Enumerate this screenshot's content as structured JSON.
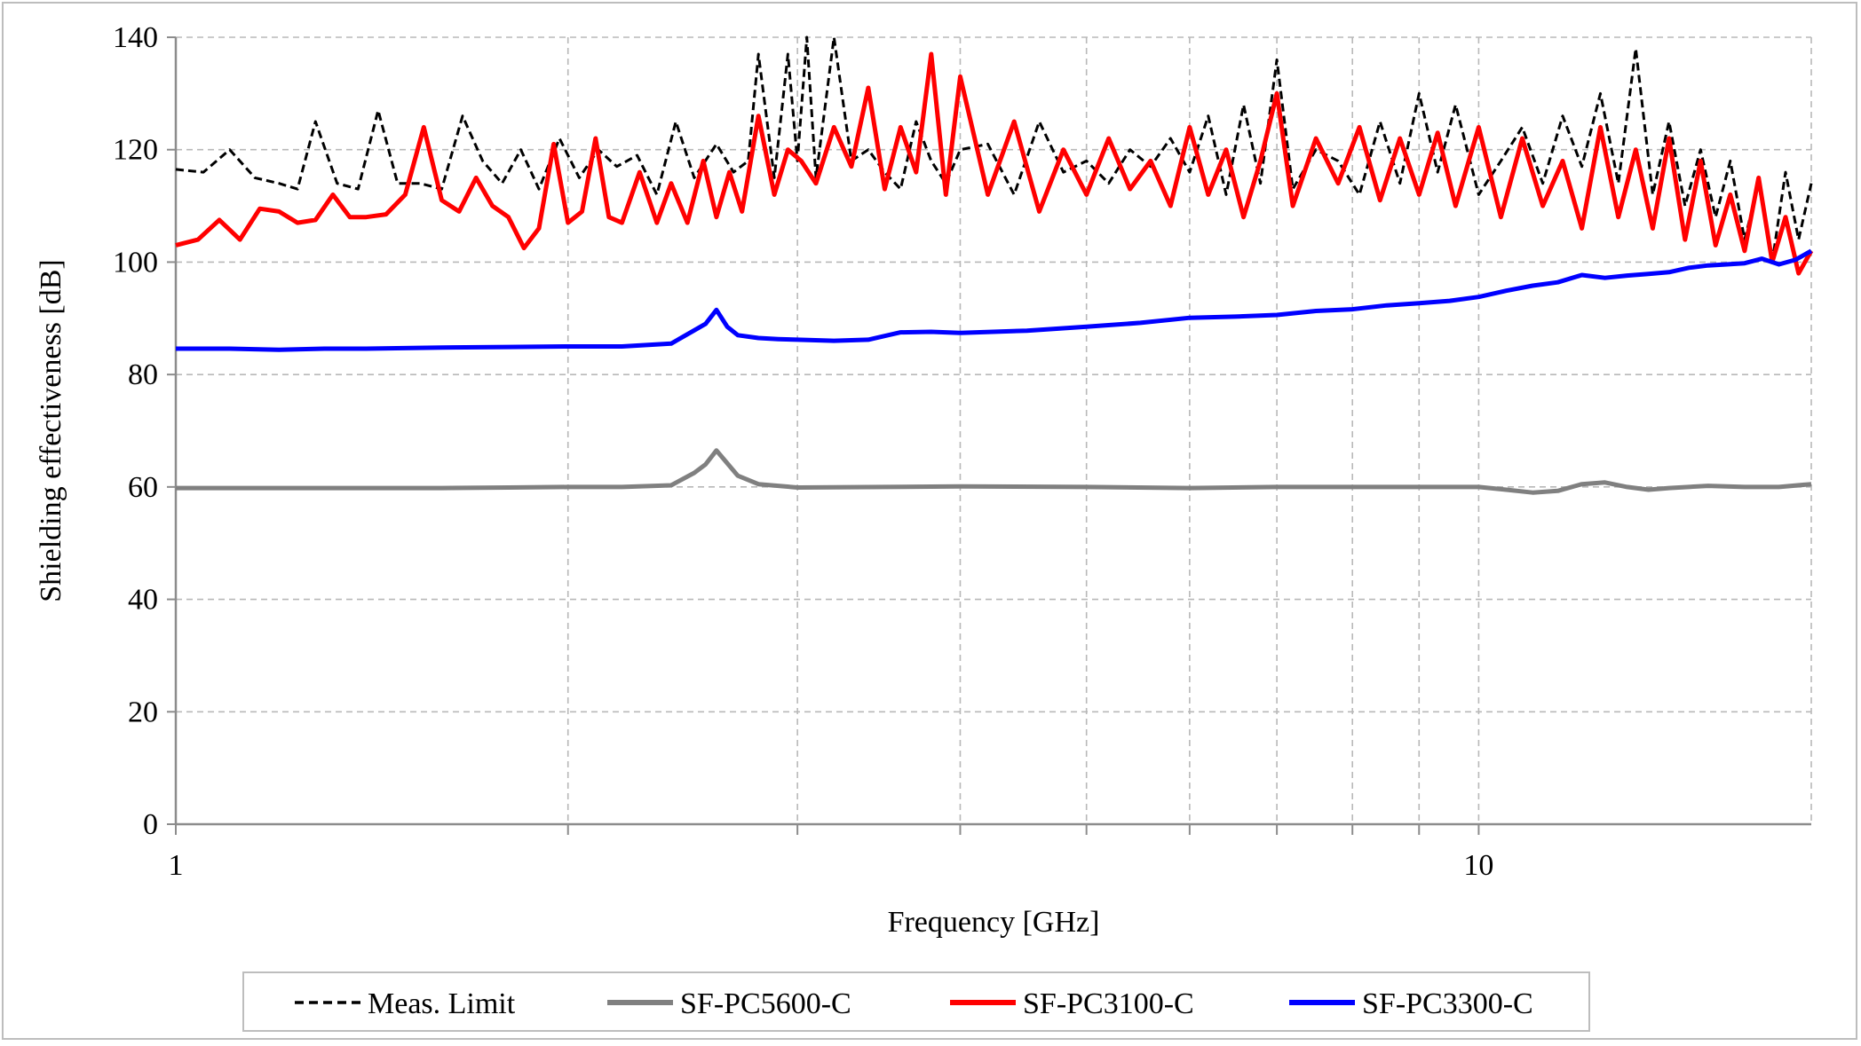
{
  "chart_data": {
    "type": "line",
    "title": "",
    "xlabel": "Frequency [GHz]",
    "ylabel": "Shielding effectiveness [dB]",
    "x_scale": "log",
    "xlim": [
      1,
      18
    ],
    "ylim": [
      0,
      140
    ],
    "y_ticks": [
      0,
      20,
      40,
      60,
      80,
      100,
      120,
      140
    ],
    "x_tick_labels": [
      {
        "value": 1,
        "label": "1"
      },
      {
        "value": 10,
        "label": "10"
      }
    ],
    "x_gridlines": [
      1,
      2,
      3,
      4,
      5,
      6,
      7,
      8,
      9,
      10
    ],
    "grid": true,
    "legend_position": "bottom",
    "series": [
      {
        "name": "Meas. Limit",
        "color": "#000000",
        "style": "dashed",
        "x": [
          1.0,
          1.05,
          1.1,
          1.15,
          1.2,
          1.24,
          1.28,
          1.33,
          1.38,
          1.43,
          1.48,
          1.54,
          1.6,
          1.66,
          1.72,
          1.78,
          1.84,
          1.9,
          1.97,
          2.04,
          2.11,
          2.18,
          2.26,
          2.34,
          2.42,
          2.5,
          2.6,
          2.68,
          2.75,
          2.8,
          2.88,
          2.95,
          3.0,
          3.05,
          3.1,
          3.2,
          3.3,
          3.4,
          3.5,
          3.6,
          3.7,
          3.8,
          3.9,
          4.0,
          4.2,
          4.4,
          4.6,
          4.8,
          5.0,
          5.2,
          5.4,
          5.6,
          5.8,
          6.0,
          6.2,
          6.4,
          6.6,
          6.8,
          7.0,
          7.2,
          7.5,
          7.8,
          8.1,
          8.4,
          8.7,
          9.0,
          9.3,
          9.6,
          10.0,
          10.4,
          10.8,
          11.2,
          11.6,
          12.0,
          12.4,
          12.8,
          13.2,
          13.6,
          14.0,
          14.4,
          14.8,
          15.2,
          15.6,
          16.0,
          16.4,
          16.8,
          17.2,
          17.6,
          18.0
        ],
        "y": [
          116.5,
          116,
          120,
          115,
          114,
          113,
          125,
          114,
          113,
          127,
          114,
          114,
          113,
          126,
          118,
          114,
          120,
          113,
          122,
          115,
          120,
          117,
          119,
          112,
          125,
          115,
          121,
          116,
          118,
          137,
          115,
          137,
          118,
          140,
          115,
          140,
          118,
          120,
          116,
          113,
          125,
          118,
          114,
          120,
          121,
          112,
          125,
          116,
          118,
          114,
          120,
          117,
          122,
          116,
          126,
          112,
          128,
          114,
          136,
          113,
          120,
          118,
          112,
          125,
          114,
          130,
          116,
          128,
          112,
          118,
          124,
          114,
          126,
          117,
          130,
          114,
          138,
          112,
          125,
          110,
          120,
          108,
          118,
          104,
          114,
          100,
          116,
          104,
          114
        ]
      },
      {
        "name": "SF-PC5600-C",
        "color": "#808080",
        "style": "solid",
        "x": [
          1.0,
          1.2,
          1.4,
          1.6,
          1.8,
          2.0,
          2.2,
          2.4,
          2.5,
          2.55,
          2.6,
          2.7,
          2.8,
          3.0,
          3.5,
          4.0,
          5.0,
          6.0,
          7.0,
          8.0,
          9.0,
          10.0,
          10.5,
          11.0,
          11.5,
          12.0,
          12.5,
          13.0,
          13.5,
          14.0,
          15.0,
          16.0,
          17.0,
          18.0
        ],
        "y": [
          59.8,
          59.8,
          59.8,
          59.8,
          59.9,
          60.0,
          60.0,
          60.3,
          62.5,
          64.0,
          66.5,
          62.0,
          60.5,
          59.9,
          60.0,
          60.1,
          60.0,
          59.8,
          60.0,
          60.0,
          60.0,
          60.0,
          59.5,
          59.0,
          59.3,
          60.5,
          60.8,
          60.0,
          59.5,
          59.8,
          60.2,
          60.0,
          60.0,
          60.5
        ]
      },
      {
        "name": "SF-PC3100-C",
        "color": "#ff0000",
        "style": "solid",
        "x": [
          1.0,
          1.04,
          1.08,
          1.12,
          1.16,
          1.2,
          1.24,
          1.28,
          1.32,
          1.36,
          1.4,
          1.45,
          1.5,
          1.55,
          1.6,
          1.65,
          1.7,
          1.75,
          1.8,
          1.85,
          1.9,
          1.95,
          2.0,
          2.05,
          2.1,
          2.15,
          2.2,
          2.27,
          2.34,
          2.4,
          2.47,
          2.54,
          2.6,
          2.66,
          2.72,
          2.8,
          2.88,
          2.95,
          3.02,
          3.1,
          3.2,
          3.3,
          3.4,
          3.5,
          3.6,
          3.7,
          3.8,
          3.9,
          4.0,
          4.2,
          4.4,
          4.6,
          4.8,
          5.0,
          5.2,
          5.4,
          5.6,
          5.8,
          6.0,
          6.2,
          6.4,
          6.6,
          6.8,
          7.0,
          7.2,
          7.5,
          7.8,
          8.1,
          8.4,
          8.7,
          9.0,
          9.3,
          9.6,
          10.0,
          10.4,
          10.8,
          11.2,
          11.6,
          12.0,
          12.4,
          12.8,
          13.2,
          13.6,
          14.0,
          14.4,
          14.8,
          15.2,
          15.6,
          16.0,
          16.4,
          16.8,
          17.2,
          17.6,
          18.0
        ],
        "y": [
          103,
          104,
          107.5,
          104,
          109.5,
          109,
          107,
          107.5,
          112,
          108,
          108,
          108.5,
          112,
          124,
          111,
          109,
          115,
          110,
          108,
          102.5,
          106,
          121,
          107,
          109,
          122,
          108,
          107,
          116,
          107,
          114,
          107,
          118,
          108,
          116,
          109,
          126,
          112,
          120,
          118,
          114,
          124,
          117,
          131,
          113,
          124,
          116,
          137,
          112,
          133,
          112,
          125,
          109,
          120,
          112,
          122,
          113,
          118,
          110,
          124,
          112,
          120,
          108,
          118,
          130,
          110,
          122,
          114,
          124,
          111,
          122,
          112,
          123,
          110,
          124,
          108,
          122,
          110,
          118,
          106,
          124,
          108,
          120,
          106,
          122,
          104,
          118,
          103,
          112,
          102,
          115,
          100,
          108,
          98,
          102
        ]
      },
      {
        "name": "SF-PC3300-C",
        "color": "#0000ff",
        "style": "solid",
        "x": [
          1.0,
          1.1,
          1.2,
          1.3,
          1.4,
          1.6,
          1.8,
          2.0,
          2.2,
          2.4,
          2.55,
          2.6,
          2.65,
          2.7,
          2.8,
          2.9,
          3.0,
          3.2,
          3.4,
          3.6,
          3.8,
          4.0,
          4.5,
          5.0,
          5.5,
          6.0,
          6.5,
          7.0,
          7.5,
          8.0,
          8.5,
          9.0,
          9.5,
          10.0,
          10.5,
          11.0,
          11.5,
          12.0,
          12.5,
          13.0,
          13.5,
          14.0,
          14.5,
          15.0,
          15.5,
          16.0,
          16.5,
          17.0,
          17.5,
          18.0
        ],
        "y": [
          84.6,
          84.6,
          84.4,
          84.6,
          84.6,
          84.8,
          84.9,
          85.0,
          85.0,
          85.5,
          89.0,
          91.5,
          88.5,
          87.0,
          86.5,
          86.3,
          86.2,
          86.0,
          86.2,
          87.5,
          87.6,
          87.4,
          87.8,
          88.5,
          89.2,
          90.1,
          90.3,
          90.6,
          91.3,
          91.6,
          92.3,
          92.7,
          93.1,
          93.8,
          94.9,
          95.8,
          96.4,
          97.7,
          97.2,
          97.6,
          97.9,
          98.2,
          99.0,
          99.4,
          99.6,
          99.8,
          100.6,
          99.6,
          100.4,
          102.0
        ]
      }
    ]
  }
}
